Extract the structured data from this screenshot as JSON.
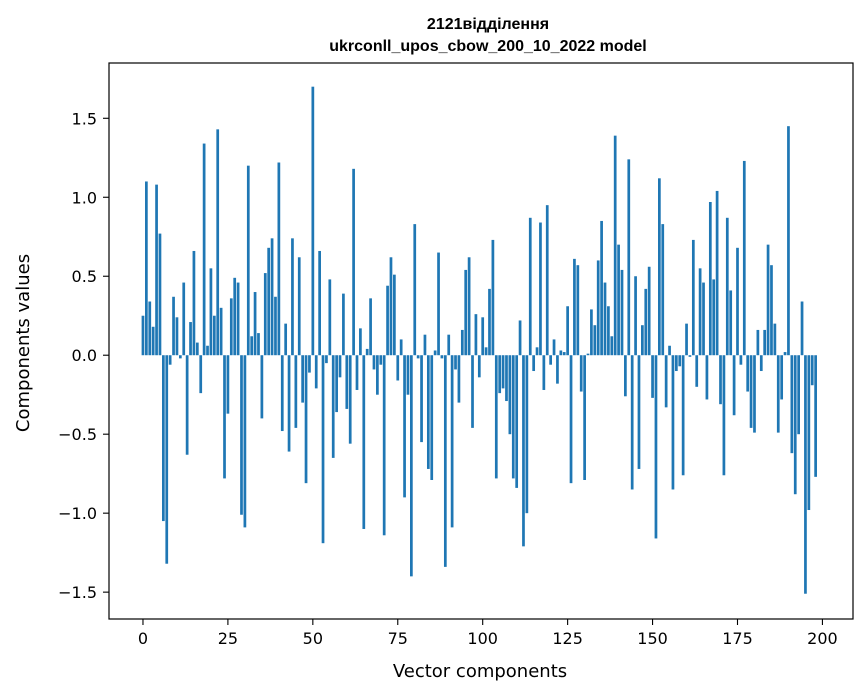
{
  "chart_data": {
    "type": "bar",
    "title_line1": "2121відділення",
    "title_line2": "ukrconll_upos_cbow_200_10_2022 model",
    "xlabel": "Vector components",
    "ylabel": "Components values",
    "xlim": [
      -10,
      209
    ],
    "ylim": [
      -1.67,
      1.85
    ],
    "xticks": [
      0,
      25,
      50,
      75,
      100,
      125,
      150,
      175,
      200
    ],
    "yticks": [
      -1.5,
      -1.0,
      -0.5,
      0.0,
      0.5,
      1.0,
      1.5
    ],
    "ytick_labels": [
      "−1.5",
      "−1.0",
      "−0.5",
      "0.0",
      "0.5",
      "1.0",
      "1.5"
    ],
    "bar_color": "#1f77b4",
    "values": [
      0.25,
      1.1,
      0.34,
      0.18,
      1.08,
      0.77,
      -1.05,
      -1.32,
      -0.06,
      0.37,
      0.24,
      -0.02,
      0.46,
      -0.63,
      0.21,
      0.66,
      0.08,
      -0.24,
      1.34,
      0.06,
      0.55,
      0.25,
      1.43,
      0.3,
      -0.78,
      -0.37,
      0.36,
      0.49,
      0.46,
      -1.01,
      -1.09,
      1.2,
      0.12,
      0.4,
      0.14,
      -0.4,
      0.52,
      0.68,
      0.74,
      0.37,
      1.22,
      -0.48,
      0.2,
      -0.61,
      0.74,
      -0.46,
      0.62,
      -0.3,
      -0.81,
      -0.11,
      1.7,
      -0.21,
      0.66,
      -1.19,
      -0.05,
      0.48,
      -0.65,
      -0.36,
      -0.14,
      0.39,
      -0.34,
      -0.56,
      1.18,
      -0.22,
      0.17,
      -1.1,
      0.04,
      0.36,
      -0.09,
      -0.25,
      -0.06,
      -1.14,
      0.44,
      0.62,
      0.51,
      -0.16,
      0.1,
      -0.9,
      -0.25,
      -1.4,
      0.83,
      -0.02,
      -0.55,
      0.13,
      -0.72,
      -0.79,
      0.03,
      0.65,
      -0.02,
      -1.34,
      0.13,
      -1.09,
      -0.09,
      -0.3,
      0.16,
      0.54,
      0.62,
      -0.46,
      0.26,
      -0.14,
      0.24,
      0.05,
      0.42,
      0.73,
      -0.78,
      -0.24,
      -0.21,
      -0.29,
      -0.5,
      -0.78,
      -0.84,
      0.22,
      -1.21,
      -1.0,
      0.87,
      -0.1,
      0.05,
      0.84,
      -0.22,
      0.95,
      -0.06,
      0.1,
      -0.18,
      0.03,
      0.02,
      0.31,
      -0.81,
      0.61,
      0.57,
      -0.23,
      -0.79,
      0.01,
      0.29,
      0.19,
      0.6,
      0.85,
      0.46,
      0.31,
      0.12,
      1.39,
      0.7,
      0.54,
      -0.26,
      1.24,
      -0.85,
      0.5,
      -0.72,
      0.19,
      0.42,
      0.56,
      -0.27,
      -1.16,
      1.12,
      0.83,
      -0.33,
      0.06,
      -0.85,
      -0.1,
      -0.07,
      -0.76,
      0.2,
      -0.01,
      0.73,
      -0.2,
      0.55,
      0.46,
      -0.28,
      0.97,
      0.48,
      1.04,
      -0.31,
      -0.76,
      0.87,
      0.41,
      -0.38,
      0.68,
      -0.06,
      1.23,
      -0.23,
      -0.46,
      -0.49,
      0.16,
      -0.1,
      0.16,
      0.7,
      0.57,
      0.2,
      -0.49,
      -0.28,
      0.02,
      1.45,
      -0.62,
      -0.88,
      -0.5,
      0.34,
      -1.51,
      -0.98,
      -0.19,
      -0.77
    ]
  }
}
